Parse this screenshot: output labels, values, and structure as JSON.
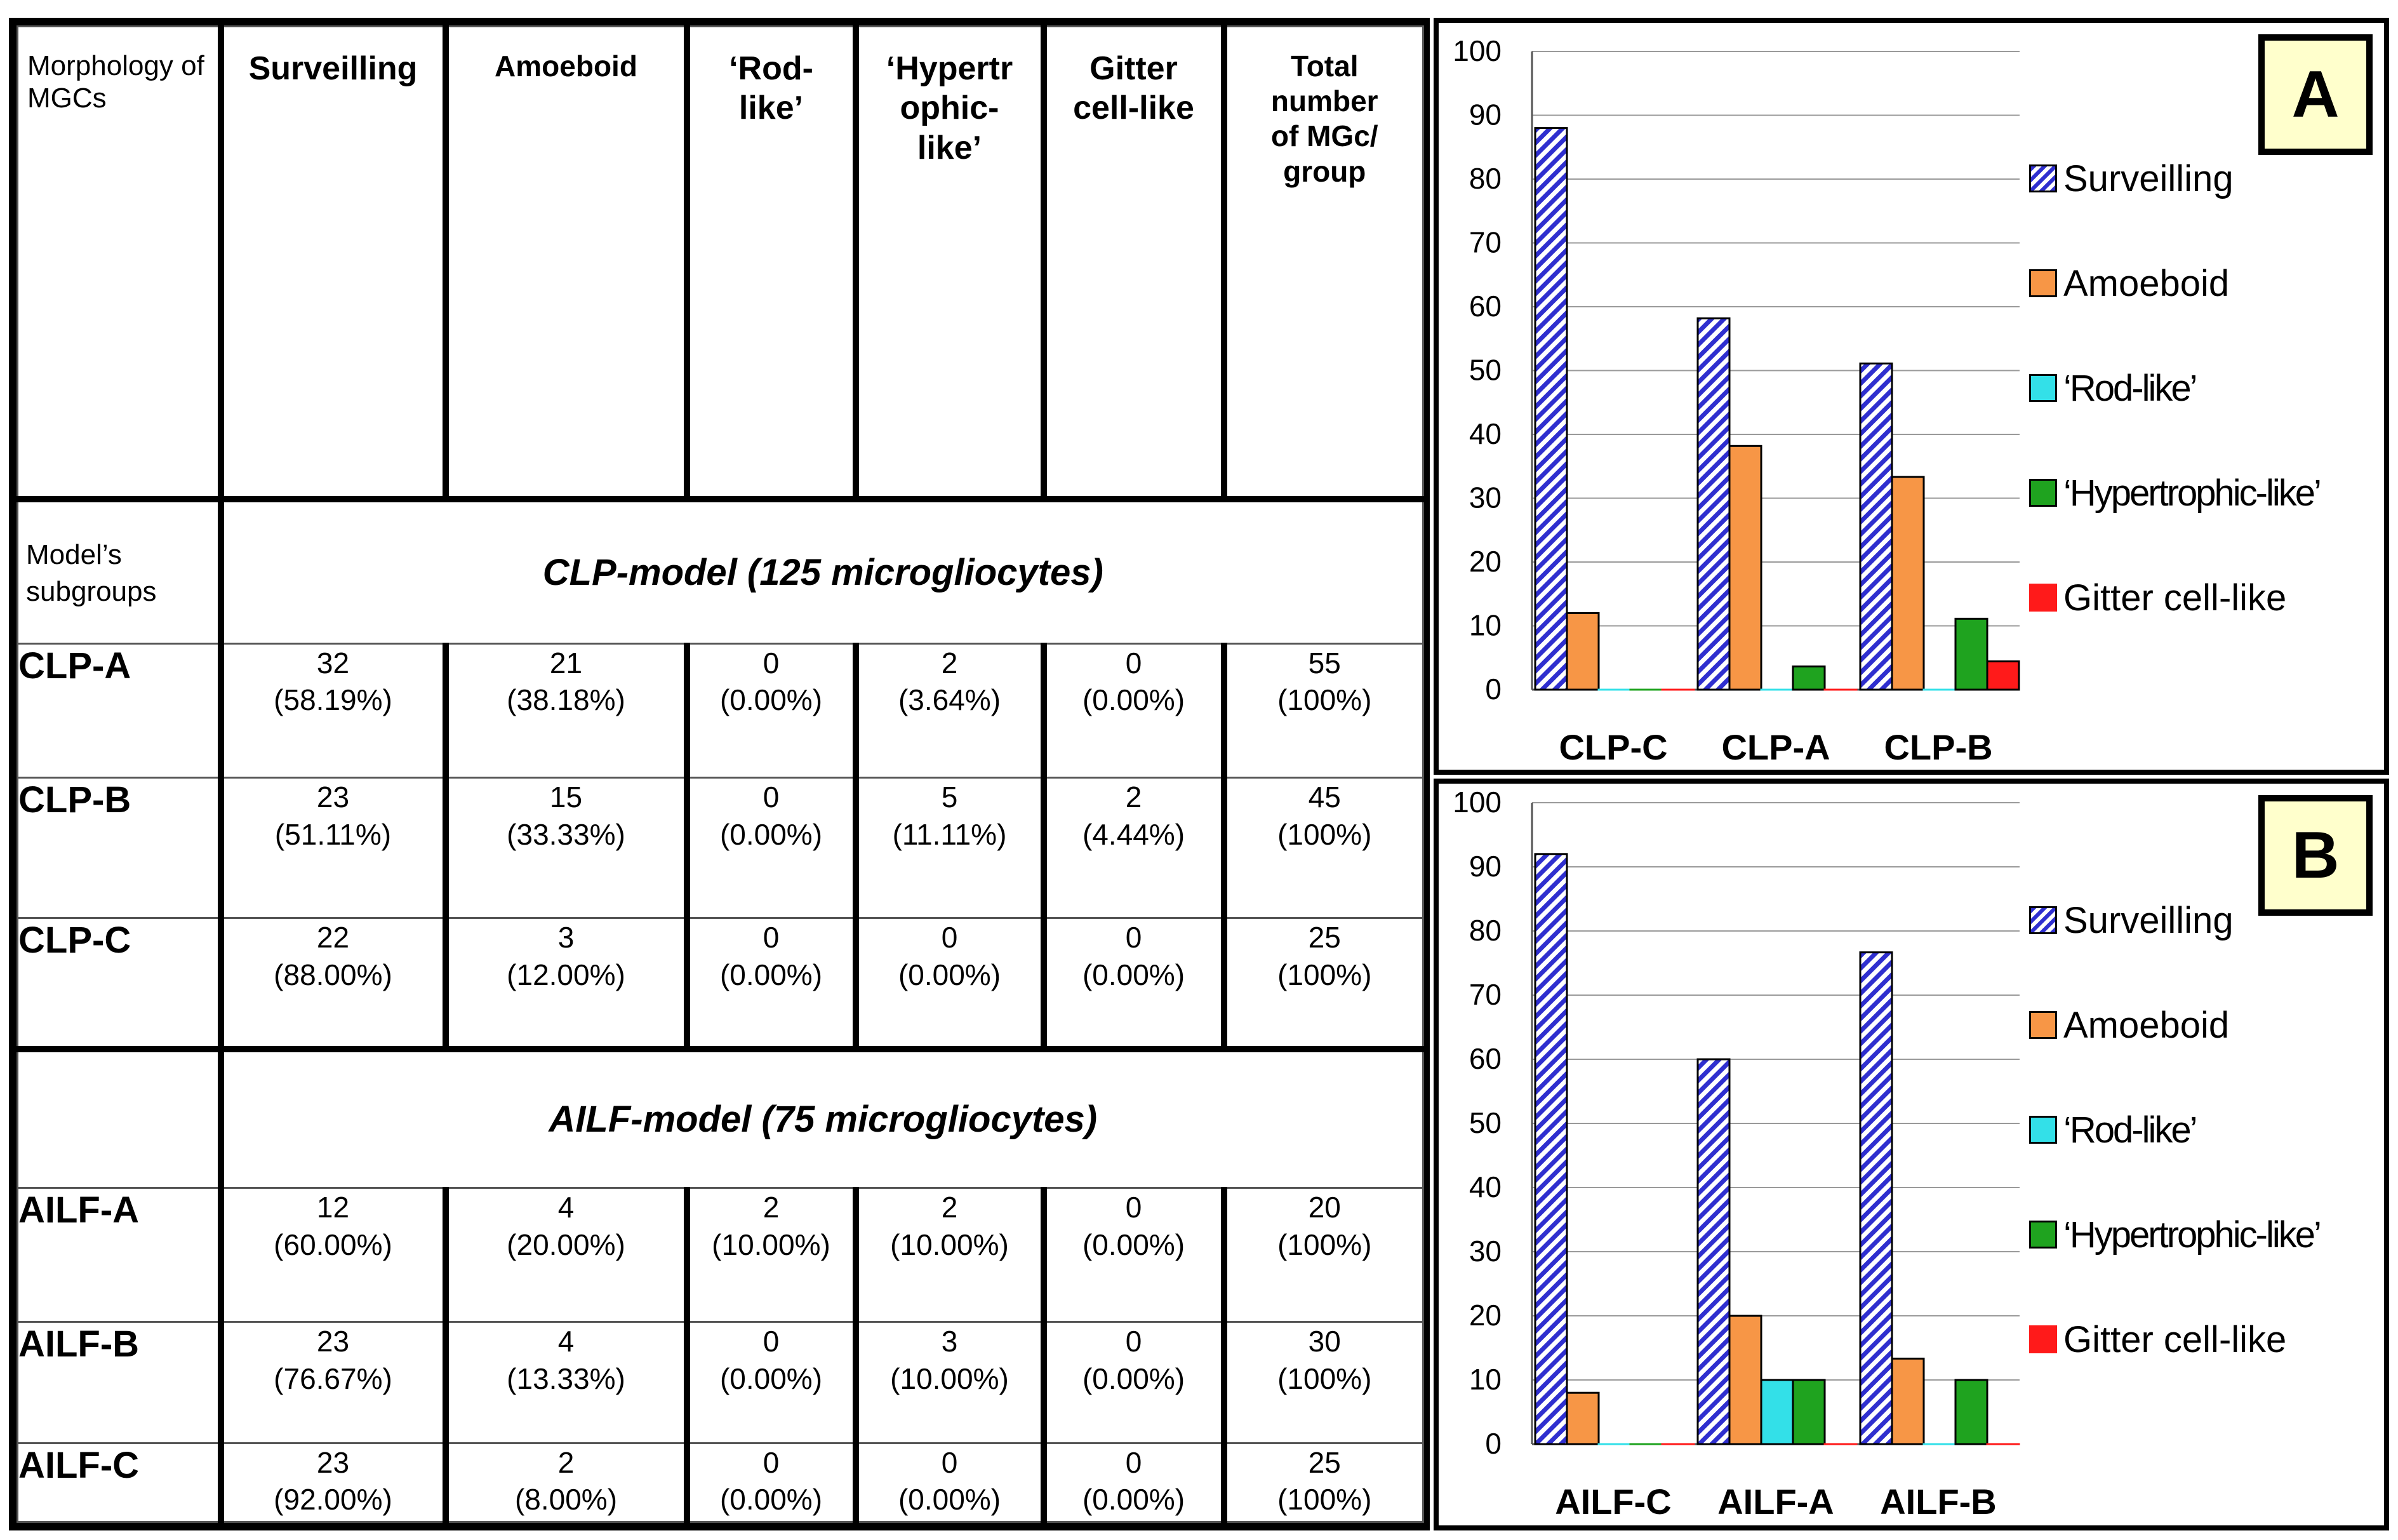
{
  "table": {
    "header_label": "Morphology of MGCs",
    "columns": [
      "Surveilling",
      "Amoeboid",
      "‘Rod-like’",
      "‘Hypertrophic-like’",
      "Gitter cell-like",
      "Total number of MGc/ group"
    ],
    "col_display": [
      "Surveilling",
      "Amoeboid",
      "‘Rod-\nlike’",
      "‘Hypertr\nophic-\nlike’",
      "Gitter\ncell-like",
      "Total\nnumber\nof MGc/\ngroup"
    ],
    "subgroups_label": "Model’s subgroups",
    "clp_title": "CLP-model (125 microgliocytes)",
    "ailf_title": "AILF-model (75 microgliocytes)",
    "clp_rows": [
      {
        "label": "CLP-A",
        "cells": [
          [
            "32",
            "(58.19%)"
          ],
          [
            "21",
            "(38.18%)"
          ],
          [
            "0",
            "(0.00%)"
          ],
          [
            "2",
            "(3.64%)"
          ],
          [
            "0",
            "(0.00%)"
          ],
          [
            "55",
            "(100%)"
          ]
        ]
      },
      {
        "label": "CLP-B",
        "cells": [
          [
            "23",
            "(51.11%)"
          ],
          [
            "15",
            "(33.33%)"
          ],
          [
            "0",
            "(0.00%)"
          ],
          [
            "5",
            "(11.11%)"
          ],
          [
            "2",
            "(4.44%)"
          ],
          [
            "45",
            "(100%)"
          ]
        ]
      },
      {
        "label": "CLP-C",
        "cells": [
          [
            "22",
            "(88.00%)"
          ],
          [
            "3",
            "(12.00%)"
          ],
          [
            "0",
            "(0.00%)"
          ],
          [
            "0",
            "(0.00%)"
          ],
          [
            "0",
            "(0.00%)"
          ],
          [
            "25",
            "(100%)"
          ]
        ]
      }
    ],
    "ailf_rows": [
      {
        "label": "AILF-A",
        "cells": [
          [
            "12",
            "(60.00%)"
          ],
          [
            "4",
            "(20.00%)"
          ],
          [
            "2",
            "(10.00%)"
          ],
          [
            "2",
            "(10.00%)"
          ],
          [
            "0",
            "(0.00%)"
          ],
          [
            "20",
            "(100%)"
          ]
        ]
      },
      {
        "label": "AILF-B",
        "cells": [
          [
            "23",
            "(76.67%)"
          ],
          [
            "4",
            "(13.33%)"
          ],
          [
            "0",
            "(0.00%)"
          ],
          [
            "3",
            "(10.00%)"
          ],
          [
            "0",
            "(0.00%)"
          ],
          [
            "30",
            "(100%)"
          ]
        ]
      },
      {
        "label": "AILF-C",
        "cells": [
          [
            "23",
            "(92.00%)"
          ],
          [
            "2",
            "(8.00%)"
          ],
          [
            "0",
            "(0.00%)"
          ],
          [
            "0",
            "(0.00%)"
          ],
          [
            "0",
            "(0.00%)"
          ],
          [
            "25",
            "(100%)"
          ]
        ]
      }
    ]
  },
  "legend": [
    {
      "name": "Surveilling",
      "color": "#2f2fcf",
      "pattern": "hatch"
    },
    {
      "name": "Amoeboid",
      "color": "#f79646"
    },
    {
      "name": "‘Rod-like’",
      "color": "#33e0e8"
    },
    {
      "name": "‘Hypertrophic-like’",
      "color": "#1fa31f"
    },
    {
      "name": "Gitter cell-like",
      "color": "#ff1a1a",
      "plain": true
    }
  ],
  "chart_data": [
    {
      "type": "bar",
      "panel": "A",
      "categories": [
        "CLP-C",
        "CLP-A",
        "CLP-B"
      ],
      "series": [
        {
          "name": "Surveilling",
          "values": [
            88,
            58.19,
            51.11
          ]
        },
        {
          "name": "Amoeboid",
          "values": [
            12,
            38.18,
            33.33
          ]
        },
        {
          "name": "‘Rod-like’",
          "values": [
            0,
            0,
            0
          ]
        },
        {
          "name": "‘Hypertrophic-like’",
          "values": [
            0,
            3.64,
            11.11
          ]
        },
        {
          "name": "Gitter cell-like",
          "values": [
            0,
            0,
            4.44
          ]
        }
      ],
      "yticks": [
        0,
        10,
        20,
        30,
        40,
        50,
        60,
        70,
        80,
        90,
        100
      ],
      "ylim": [
        0,
        100
      ],
      "grid": true,
      "legend_position": "right"
    },
    {
      "type": "bar",
      "panel": "B",
      "categories": [
        "AILF-C",
        "AILF-A",
        "AILF-B"
      ],
      "series": [
        {
          "name": "Surveilling",
          "values": [
            92,
            60,
            76.67
          ]
        },
        {
          "name": "Amoeboid",
          "values": [
            8,
            20,
            13.33
          ]
        },
        {
          "name": "‘Rod-like’",
          "values": [
            0,
            10,
            0
          ]
        },
        {
          "name": "‘Hypertrophic-like’",
          "values": [
            0,
            10,
            10
          ]
        },
        {
          "name": "Gitter cell-like",
          "values": [
            0,
            0,
            0
          ]
        }
      ],
      "yticks": [
        0,
        10,
        20,
        30,
        40,
        50,
        60,
        70,
        80,
        90,
        100
      ],
      "ylim": [
        0,
        100
      ],
      "grid": true,
      "legend_position": "right"
    }
  ]
}
